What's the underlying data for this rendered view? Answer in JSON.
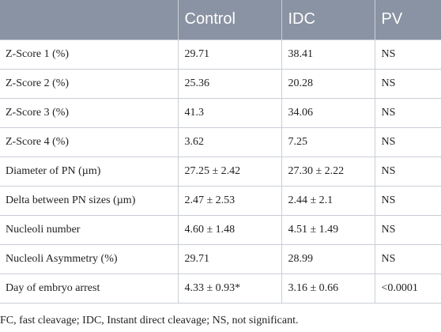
{
  "table": {
    "headers": [
      "",
      "Control",
      "IDC",
      "PV"
    ],
    "rows": [
      [
        "Z-Score 1 (%)",
        "29.71",
        "38.41",
        "NS"
      ],
      [
        "Z-Score 2 (%)",
        "25.36",
        "20.28",
        "NS"
      ],
      [
        "Z-Score 3 (%)",
        "41.3",
        "34.06",
        "NS"
      ],
      [
        "Z-Score 4 (%)",
        "3.62",
        "7.25",
        "NS"
      ],
      [
        "Diameter of PN (µm)",
        "27.25 ± 2.42",
        "27.30 ± 2.22",
        "NS"
      ],
      [
        "Delta between PN sizes (µm)",
        "2.47 ± 2.53",
        "2.44 ± 2.1",
        "NS"
      ],
      [
        "Nucleoli number",
        "4.60 ± 1.48",
        "4.51 ± 1.49",
        "NS"
      ],
      [
        "Nucleoli Asymmetry (%)",
        "29.71",
        "28.99",
        "NS"
      ],
      [
        "Day of embryo arrest",
        "4.33 ± 0.93*",
        "3.16 ± 0.66",
        "<0.0001"
      ]
    ]
  },
  "footnote": "FC, fast cleavage; IDC, Instant direct cleavage; NS, not significant.",
  "colors": {
    "header_background": "#8a93a3",
    "header_text": "#ffffff",
    "border": "#c9ced6",
    "body_text": "#222222"
  }
}
